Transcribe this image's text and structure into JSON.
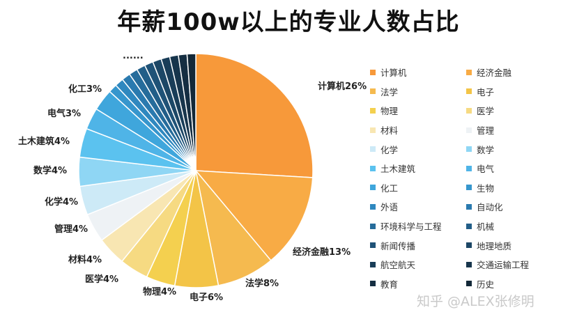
{
  "title": "年薪100w以上的专业人数占比",
  "watermark": "知乎 @ALEX张修明",
  "chart_data": {
    "type": "pie",
    "title": "年薪100w以上的专业人数占比",
    "ellipsis_label": "......",
    "slices": [
      {
        "name": "计算机",
        "value": 26,
        "label": "计算机26%",
        "color": "#f7993a"
      },
      {
        "name": "经济金融",
        "value": 13,
        "label": "经济金融13%",
        "color": "#f8ab45"
      },
      {
        "name": "法学",
        "value": 8,
        "label": "法学8%",
        "color": "#f5ba4f"
      },
      {
        "name": "电子",
        "value": 6,
        "label": "电子6%",
        "color": "#f3c447"
      },
      {
        "name": "物理",
        "value": 4,
        "label": "物理4%",
        "color": "#f4d04f"
      },
      {
        "name": "医学",
        "value": 4,
        "label": "医学4%",
        "color": "#f6da82"
      },
      {
        "name": "材料",
        "value": 4,
        "label": "材料4%",
        "color": "#f8e6b2"
      },
      {
        "name": "管理",
        "value": 4,
        "label": "管理4%",
        "color": "#eef2f5"
      },
      {
        "name": "化学",
        "value": 4,
        "label": "化学4%",
        "color": "#cdeaf7"
      },
      {
        "name": "数学",
        "value": 4,
        "label": "数学4%",
        "color": "#8fd6f4"
      },
      {
        "name": "土木建筑",
        "value": 4,
        "label": "土木建筑4%",
        "color": "#5bc2ef"
      },
      {
        "name": "电气",
        "value": 3,
        "label": "电气3%",
        "color": "#4fb4e7"
      },
      {
        "name": "化工",
        "value": 3,
        "label": "化工3%",
        "color": "#3fa6dc"
      },
      {
        "name": "生物",
        "value": 1.2,
        "label": "",
        "color": "#3696cd"
      },
      {
        "name": "外语",
        "value": 1.2,
        "label": "",
        "color": "#2f88bf"
      },
      {
        "name": "自动化",
        "value": 1.2,
        "label": "",
        "color": "#2a7aaf"
      },
      {
        "name": "环境科学与工程",
        "value": 1.2,
        "label": "",
        "color": "#266c9b"
      },
      {
        "name": "机械",
        "value": 1.2,
        "label": "",
        "color": "#225e88"
      },
      {
        "name": "新闻传播",
        "value": 1.2,
        "label": "",
        "color": "#1f5277"
      },
      {
        "name": "地理地质",
        "value": 1.2,
        "label": "",
        "color": "#1c4766"
      },
      {
        "name": "航空航天",
        "value": 1.2,
        "label": "",
        "color": "#193d58"
      },
      {
        "name": "交通运输工程",
        "value": 1.2,
        "label": "",
        "color": "#17354c"
      },
      {
        "name": "教育",
        "value": 1.2,
        "label": "",
        "color": "#152e42"
      },
      {
        "name": "历史",
        "value": 1.2,
        "label": "",
        "color": "#132838"
      }
    ]
  }
}
